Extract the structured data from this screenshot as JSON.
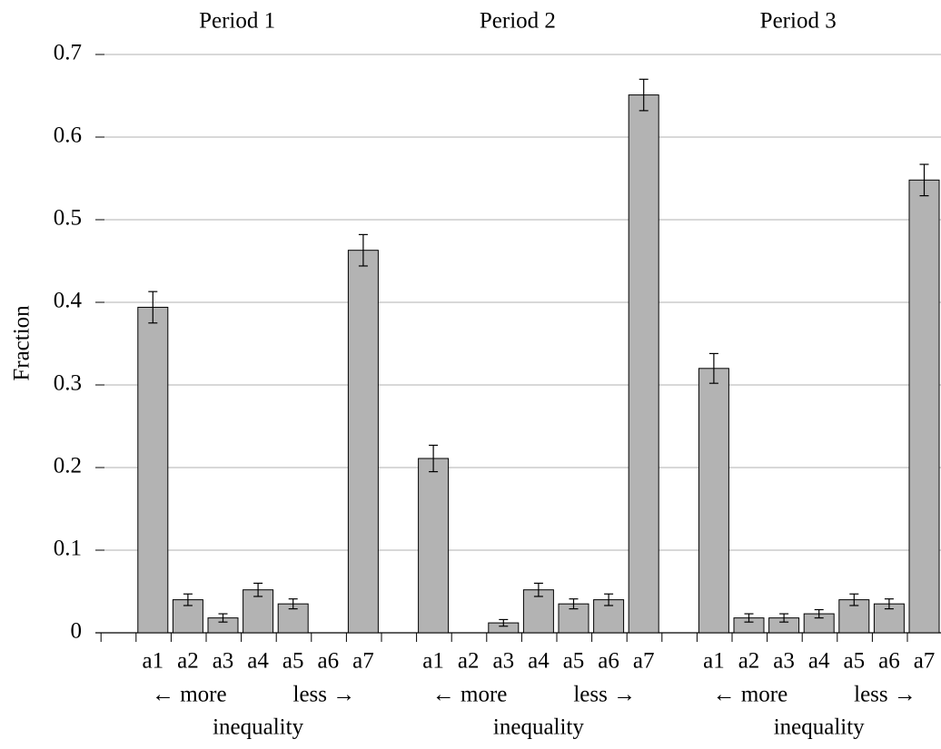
{
  "chart_data": {
    "type": "bar",
    "y_label": "Fraction",
    "ylim": [
      0,
      0.7
    ],
    "yticks": [
      0,
      0.1,
      0.2,
      0.3,
      0.4,
      0.5,
      0.6,
      0.7
    ],
    "grid": true,
    "color": "#b3b3b3",
    "groups": [
      {
        "title": "Period 1",
        "categories": [
          null,
          "a1",
          "a2",
          "a3",
          "a4",
          "a5",
          "a6",
          "a7"
        ],
        "values": [
          0,
          0.394,
          0.04,
          0.018,
          0.052,
          0.035,
          0,
          0.463
        ],
        "errors": [
          null,
          0.019,
          0.007,
          0.005,
          0.008,
          0.006,
          null,
          0.019
        ],
        "annotations": [
          "← more",
          "less →",
          "inequality"
        ]
      },
      {
        "title": "Period 2",
        "categories": [
          null,
          "a1",
          "a2",
          "a3",
          "a4",
          "a5",
          "a6",
          "a7"
        ],
        "values": [
          0,
          0.211,
          0,
          0.012,
          0.052,
          0.035,
          0.04,
          0.651
        ],
        "errors": [
          null,
          0.016,
          null,
          0.004,
          0.008,
          0.006,
          0.007,
          0.019
        ],
        "annotations": [
          "← more",
          "less →",
          "inequality"
        ]
      },
      {
        "title": "Period 3",
        "categories": [
          null,
          "a1",
          "a2",
          "a3",
          "a4",
          "a5",
          "a6",
          "a7"
        ],
        "values": [
          0,
          0.32,
          0.018,
          0.018,
          0.023,
          0.04,
          0.035,
          0.548
        ],
        "errors": [
          null,
          0.018,
          0.005,
          0.005,
          0.005,
          0.007,
          0.006,
          0.019
        ],
        "annotations": [
          "← more",
          "less →",
          "inequality"
        ]
      }
    ]
  }
}
